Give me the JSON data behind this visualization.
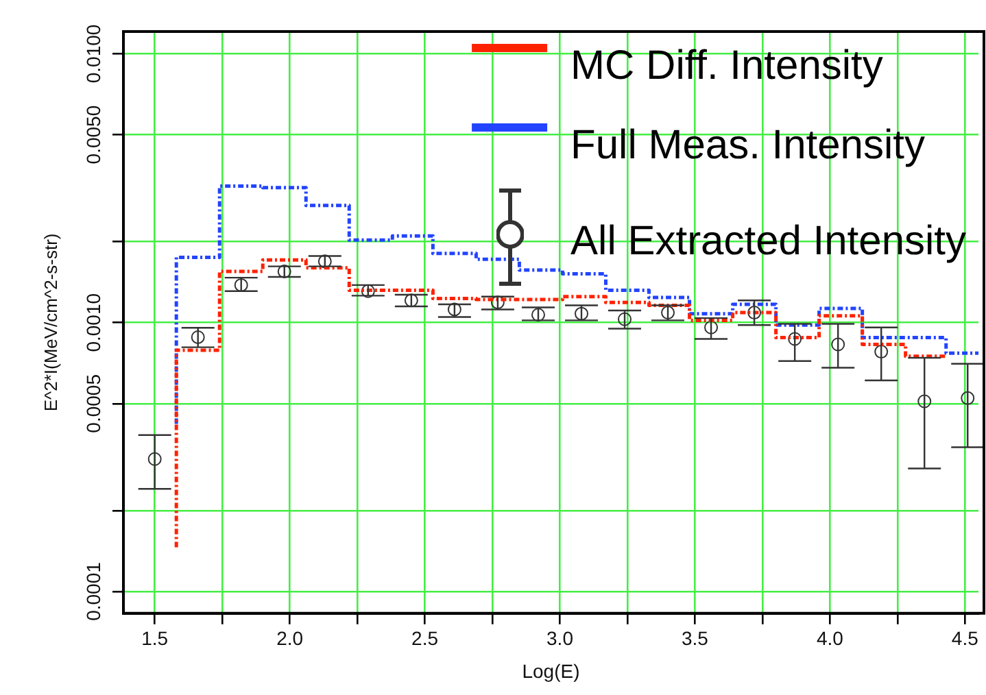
{
  "chart_data": {
    "type": "step",
    "xlabel": "Log(E)",
    "ylabel": "E^2*I(MeV/cm^2-s-str)",
    "xlim": [
      1.384,
      4.55
    ],
    "xticks": [
      1.5,
      {
        "value": 1.75,
        "label": null
      },
      {
        "value": 2.0,
        "label": "2.0"
      },
      {
        "value": 2.25,
        "label": null
      },
      2.5,
      {
        "value": 2.75,
        "label": null
      },
      {
        "value": 3.0,
        "label": "3.0"
      },
      {
        "value": 3.25,
        "label": null
      },
      3.5,
      {
        "value": 3.75,
        "label": null
      },
      {
        "value": 4.0,
        "label": "4.0"
      },
      {
        "value": 4.25,
        "label": null
      },
      4.5
    ],
    "ylim": [
      8.3e-05,
      0.0121
    ],
    "yticks": [
      0.0001,
      {
        "value": 0.0002,
        "label": null
      },
      0.0005,
      {
        "value": 0.001,
        "label": "0.0010"
      },
      {
        "value": 0.002,
        "label": null
      },
      {
        "value": 0.005,
        "label": "0.0050"
      },
      {
        "value": 0.01,
        "label": "0.0100"
      }
    ],
    "log": true,
    "grid": true,
    "legend": "top right",
    "line_style": "dotted",
    "series": [
      {
        "name": "MC Diff. Intensity",
        "type": "step",
        "color": "#ff2200",
        "x": [
          1.58,
          1.74,
          1.9,
          2.06,
          2.22,
          2.38,
          2.53,
          2.69,
          2.85,
          3.01,
          3.17,
          3.33,
          3.48,
          3.64,
          3.8,
          3.96,
          4.12,
          4.28,
          4.43
        ],
        "values": [
          0.000146,
          0.00079,
          0.00155,
          0.00171,
          0.0016,
          0.00132,
          0.00132,
          0.00123,
          0.00122,
          0.00122,
          0.00125,
          0.00119,
          0.00116,
          0.00102,
          0.00109,
          0.00088,
          0.00106,
          0.00083,
          0.00075
        ]
      },
      {
        "name": "Full Meas. Intensity",
        "type": "step",
        "color": "#2244ff",
        "x": [
          1.58,
          1.74,
          1.9,
          2.06,
          2.22,
          2.38,
          2.53,
          2.69,
          2.85,
          3.01,
          3.17,
          3.33,
          3.48,
          3.64,
          3.8,
          3.96,
          4.12,
          4.28,
          4.43,
          4.55
        ],
        "values": [
          0.00042,
          0.00175,
          0.00322,
          0.00318,
          0.00273,
          0.00203,
          0.0021,
          0.00181,
          0.00172,
          0.00157,
          0.00152,
          0.00132,
          0.00124,
          0.00108,
          0.00117,
          0.00098,
          0.00113,
          0.00088,
          0.00088,
          0.00077
        ]
      },
      {
        "name": "All Extracted Intensity",
        "type": "scatter",
        "marker": "circle",
        "color": "#333333",
        "x": [
          1.5,
          1.66,
          1.82,
          1.98,
          2.13,
          2.29,
          2.45,
          2.61,
          2.77,
          2.92,
          3.08,
          3.24,
          3.4,
          3.56,
          3.72,
          3.87,
          4.03,
          4.19,
          4.35,
          4.51
        ],
        "values": [
          0.000311,
          0.000883,
          0.00138,
          0.00155,
          0.00169,
          0.00131,
          0.00121,
          0.00112,
          0.00119,
          0.00107,
          0.00108,
          0.00103,
          0.00109,
          0.00096,
          0.00109,
          0.00087,
          0.00083,
          0.00078,
          0.00051,
          0.000524
        ],
        "errors": [
          [
            0.000241,
            0.000382
          ],
          [
            0.00081,
            0.000957
          ],
          [
            0.00131,
            0.00147
          ],
          [
            0.00148,
            0.00162
          ],
          [
            0.00162,
            0.00177
          ],
          [
            0.00126,
            0.00138
          ],
          [
            0.00115,
            0.00127
          ],
          [
            0.00105,
            0.00117
          ],
          [
            0.00112,
            0.00125
          ],
          [
            0.00102,
            0.00114
          ],
          [
            0.00102,
            0.00116
          ],
          [
            0.00095,
            0.00111
          ],
          [
            0.00102,
            0.00116
          ],
          [
            0.00087,
            0.00104
          ],
          [
            0.00098,
            0.00121
          ],
          [
            0.00072,
            0.00099
          ],
          [
            0.00068,
            0.00099
          ],
          [
            0.00061,
            0.00096
          ],
          [
            0.000287,
            0.00074
          ],
          [
            0.000344,
            0.000703
          ]
        ]
      }
    ]
  }
}
